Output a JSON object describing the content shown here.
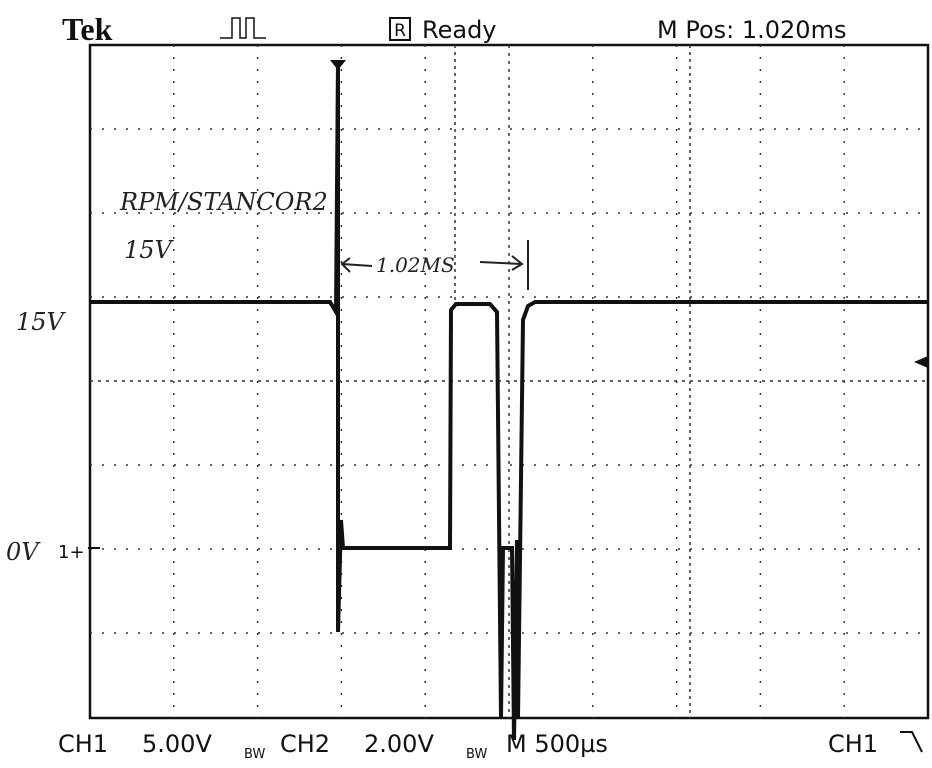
{
  "header": {
    "brand": "Tek",
    "status_icon": "R",
    "status": "Ready",
    "position": "M Pos: 1.020ms"
  },
  "footer": {
    "ch1_label": "CH1",
    "ch1_scale": "5.00V",
    "ch1_bandwidth": "BW",
    "ch2_label": "CH2",
    "ch2_scale": "2.00V",
    "ch2_bandwidth": "BW",
    "timebase": "M 500µs",
    "trigger_source": "CH1"
  },
  "annotations": {
    "device": "RPM/STANCOR2",
    "supply": "15V",
    "period": "1.02MS",
    "high_level": "15V",
    "low_level": "0V",
    "channel_marker": "1+"
  }
}
